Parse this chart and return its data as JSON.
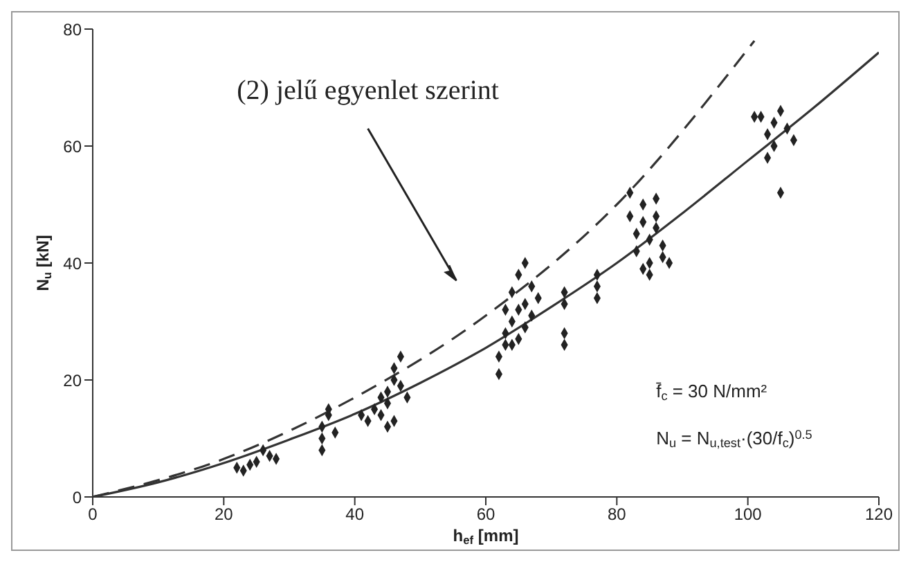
{
  "chart_data": {
    "type": "scatter",
    "xlabel": "h$_{ef}$ [mm]",
    "ylabel": "N$_{u}$ [kN]",
    "xlim": [
      0,
      120
    ],
    "xticks": [
      0,
      20,
      40,
      60,
      80,
      100,
      120
    ],
    "ylim": [
      0,
      80
    ],
    "yticks": [
      0,
      20,
      40,
      60,
      80
    ],
    "grid": false,
    "annotations": [
      "(2) jelű egyenlet szerint",
      "f̄$_{c}$ = 30 N/mm²",
      "N$_{u}$ = N$_{u,test}$·(30/f$_{c}$)$^{0.5}$"
    ],
    "series": [
      {
        "color": "#222222",
        "marker": "diamond",
        "x": [
          22,
          23,
          24,
          25,
          26,
          27,
          28,
          35,
          35,
          35,
          36,
          36,
          37,
          41,
          42,
          43,
          44,
          45,
          45,
          46,
          46,
          47,
          47,
          44,
          46,
          48,
          45,
          62,
          62,
          63,
          63,
          63,
          64,
          64,
          65,
          65,
          66,
          66,
          66,
          67,
          67,
          68,
          64,
          65,
          72,
          72,
          72,
          72,
          77,
          77,
          77,
          82,
          82,
          83,
          83,
          84,
          84,
          85,
          85,
          85,
          86,
          86,
          87,
          87,
          88,
          86,
          84,
          101,
          102,
          103,
          104,
          104,
          105,
          105,
          106,
          107,
          103
        ],
        "values": [
          5,
          4.5,
          5.5,
          6,
          8,
          7,
          6.5,
          8,
          10,
          12,
          14,
          15,
          11,
          14,
          13,
          15,
          14,
          16,
          18,
          20,
          22,
          24,
          19,
          17,
          13,
          17,
          12,
          21,
          24,
          26,
          28,
          32,
          30,
          35,
          27,
          38,
          40,
          33,
          29,
          36,
          31,
          34,
          26,
          32,
          26,
          28,
          33,
          35,
          34,
          36,
          38,
          52,
          48,
          45,
          42,
          50,
          47,
          44,
          40,
          38,
          46,
          48,
          43,
          41,
          40,
          51,
          39,
          65,
          65,
          62,
          64,
          60,
          52,
          66,
          63,
          61,
          58
        ]
      },
      {
        "type": "line",
        "color": "#333333",
        "line_style": "solid",
        "marker": "none",
        "x": [
          0,
          10,
          20,
          30,
          40,
          50,
          60,
          70,
          80,
          90,
          100,
          110,
          120
        ],
        "values": [
          0,
          2.5,
          5.8,
          9.8,
          14.2,
          19.5,
          25.5,
          32.5,
          40,
          48.5,
          57.5,
          66.5,
          76
        ]
      },
      {
        "type": "line",
        "color": "#333333",
        "line_style": "dashed",
        "marker": "none",
        "x": [
          0,
          20,
          40,
          60,
          80,
          101
        ],
        "values": [
          0,
          6.5,
          17,
          31,
          50,
          78
        ]
      }
    ]
  }
}
